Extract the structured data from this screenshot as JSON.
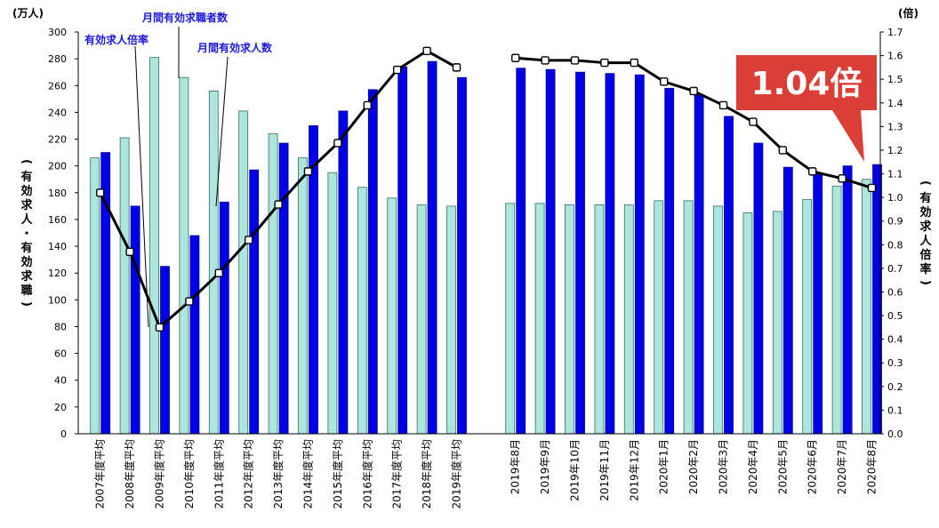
{
  "chart_data": {
    "type": "bar",
    "left_unit": "(万人)",
    "right_unit": "(倍)",
    "ylabel_left": "(有効求人・有効求職)",
    "ylabel_right": "(有効求人倍率)",
    "ylim_left": [
      0,
      300
    ],
    "ylim_right": [
      0.0,
      1.7
    ],
    "left_ticks": [
      "0",
      "20",
      "40",
      "60",
      "80",
      "100",
      "120",
      "140",
      "160",
      "180",
      "200",
      "220",
      "240",
      "260",
      "280",
      "300"
    ],
    "right_ticks": [
      "0.0",
      "0.1",
      "0.2",
      "0.3",
      "0.4",
      "0.5",
      "0.6",
      "0.7",
      "0.8",
      "0.9",
      "1.0",
      "1.1",
      "1.2",
      "1.3",
      "1.4",
      "1.5",
      "1.6",
      "1.7"
    ],
    "groups": [
      {
        "categories": [
          "2007年度平均",
          "2008年度平均",
          "2009年度平均",
          "2010年度平均",
          "2011年度平均",
          "2012年度平均",
          "2013年度平均",
          "2014年度平均",
          "2015年度平均",
          "2016年度平均",
          "2017年度平均",
          "2018年度平均",
          "2019年度平均"
        ],
        "seekers": [
          206,
          221,
          281,
          266,
          256,
          241,
          224,
          206,
          195,
          184,
          176,
          171,
          170
        ],
        "openings": [
          210,
          170,
          125,
          148,
          173,
          197,
          217,
          230,
          241,
          257,
          274,
          278,
          266
        ],
        "ratio": [
          1.02,
          0.77,
          0.45,
          0.56,
          0.68,
          0.82,
          0.97,
          1.11,
          1.23,
          1.39,
          1.54,
          1.62,
          1.55
        ]
      },
      {
        "categories": [
          "2019年8月",
          "2019年9月",
          "2019年10月",
          "2019年11月",
          "2019年12月",
          "2020年1月",
          "2020年2月",
          "2020年3月",
          "2020年4月",
          "2020年5月",
          "2020年6月",
          "2020年7月",
          "2020年8月"
        ],
        "seekers": [
          172,
          172,
          171,
          171,
          171,
          174,
          174,
          170,
          165,
          166,
          175,
          185,
          190
        ],
        "openings": [
          273,
          272,
          270,
          269,
          268,
          258,
          253,
          237,
          217,
          199,
          194,
          200,
          201
        ],
        "ratio": [
          1.59,
          1.58,
          1.58,
          1.57,
          1.57,
          1.49,
          1.45,
          1.39,
          1.32,
          1.2,
          1.11,
          1.08,
          1.04
        ]
      }
    ],
    "annotations": {
      "ratio": "有効求人倍率",
      "seekers": "月間有効求職者数",
      "openings": "月間有効求人数"
    },
    "callout": "1.04倍",
    "colors": {
      "seekers_fill": "#aee6de",
      "seekers_stroke": "#2f6f68",
      "openings_fill": "#0000e6",
      "openings_stroke": "#00008a",
      "line": "#000000",
      "callout": "#d93f36"
    }
  }
}
